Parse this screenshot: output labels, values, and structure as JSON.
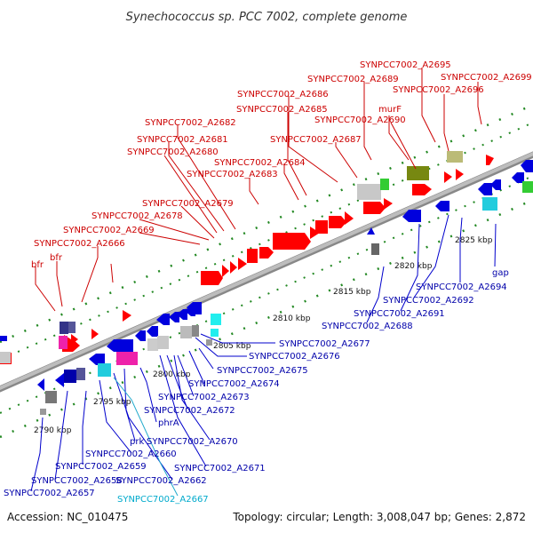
{
  "title": "Synechococcus sp. PCC 7002, complete genome",
  "footer": {
    "accession": "Accession: NC_010475",
    "summary": "Topology: circular; Length: 3,008,047 bp; Genes: 2,872"
  },
  "ticks": [
    "2790 kbp",
    "2795 kbp",
    "2800 kbp",
    "2805 kbp",
    "2810 kbp",
    "2815 kbp",
    "2820 kbp",
    "2825 kbp"
  ],
  "colors": {
    "forward_label": "#cc0000",
    "reverse_label": "#0000aa",
    "rna_label": "#00aacc",
    "backbone": "#aaaaaa",
    "dots": "#228822"
  },
  "forward_labels": [
    "SYNPCC7002_A2695",
    "SYNPCC7002_A2699",
    "SYNPCC7002_A2689",
    "SYNPCC7002_A2696",
    "SYNPCC7002_A2686",
    "SYNPCC7002_A2685",
    "murF",
    "SYNPCC7002_A2682",
    "SYNPCC7002_A2690",
    "SYNPCC7002_A2681",
    "SYNPCC7002_A2687",
    "SYNPCC7002_A2680",
    "SYNPCC7002_A2684",
    "SYNPCC7002_A2683",
    "SYNPCC7002_A2679",
    "SYNPCC7002_A2678",
    "SYNPCC7002_A2669",
    "SYNPCC7002_A2666",
    "bfr",
    "bfr"
  ],
  "reverse_labels": [
    "SYNPCC7002_A2677",
    "SYNPCC7002_A2676",
    "SYNPCC7002_A2675",
    "SYNPCC7002_A2674",
    "SYNPCC7002_A2673",
    "SYNPCC7002_A2672",
    "phrA",
    "prk",
    "SYNPCC7002_A2670",
    "SYNPCC7002_A2660",
    "SYNPCC7002_A2671",
    "SYNPCC7002_A2659",
    "SYNPCC7002_A2662",
    "SYNPCC7002_A2658",
    "SYNPCC7002_A2657",
    "gap",
    "SYNPCC7002_A2694",
    "SYNPCC7002_A2692",
    "SYNPCC7002_A2691",
    "SYNPCC7002_A2688"
  ],
  "rna_labels": [
    "SYNPCC7002_A2667"
  ]
}
